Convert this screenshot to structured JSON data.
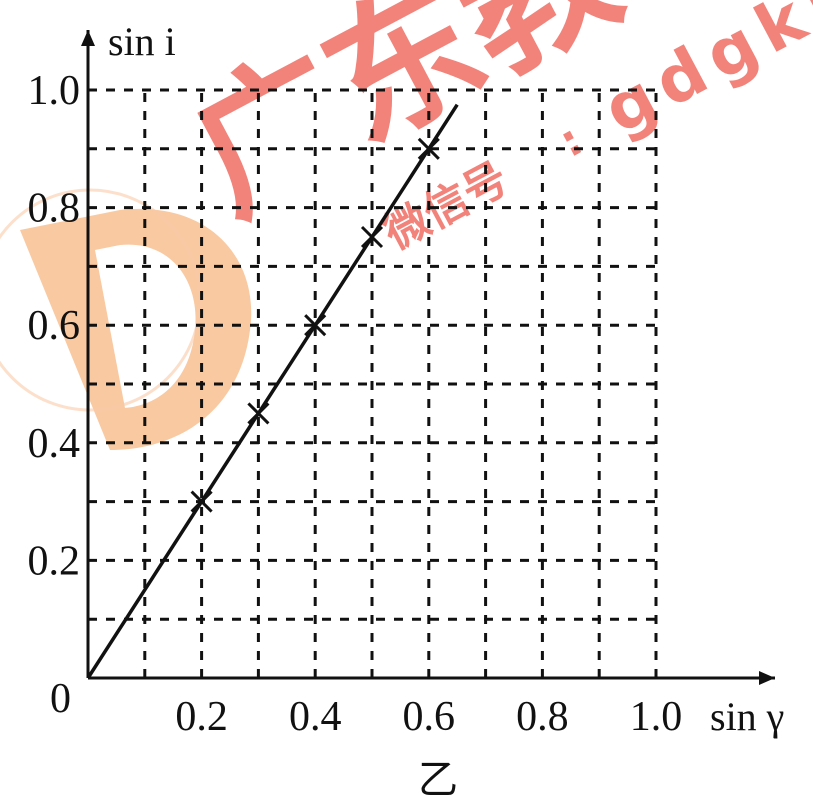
{
  "watermark": {
    "cn_text": "广东教",
    "wechat_label": "微信号",
    "separator": ":",
    "wechat_id": "gdgkjx",
    "color": "#ee5a4f",
    "logo_color": "#f5a96b"
  },
  "chart_data": {
    "type": "scatter",
    "xlabel": "sin γ",
    "ylabel": "sin i",
    "caption": "乙",
    "origin_label": "0",
    "xlim": [
      0,
      1.0
    ],
    "ylim": [
      0,
      1.0
    ],
    "x_ticks": [
      "0.2",
      "0.4",
      "0.6",
      "0.8",
      "1.0"
    ],
    "y_ticks": [
      "0.2",
      "0.4",
      "0.6",
      "0.8",
      "1.0"
    ],
    "grid": "dashed, step 0.1",
    "series": [
      {
        "points": [
          {
            "x": 0.2,
            "y": 0.3
          },
          {
            "x": 0.3,
            "y": 0.45
          },
          {
            "x": 0.4,
            "y": 0.6
          },
          {
            "x": 0.5,
            "y": 0.75
          },
          {
            "x": 0.6,
            "y": 0.9
          }
        ],
        "fit_line": {
          "x0": 0,
          "y0": 0,
          "x1": 0.65,
          "y1": 0.975
        }
      }
    ]
  }
}
